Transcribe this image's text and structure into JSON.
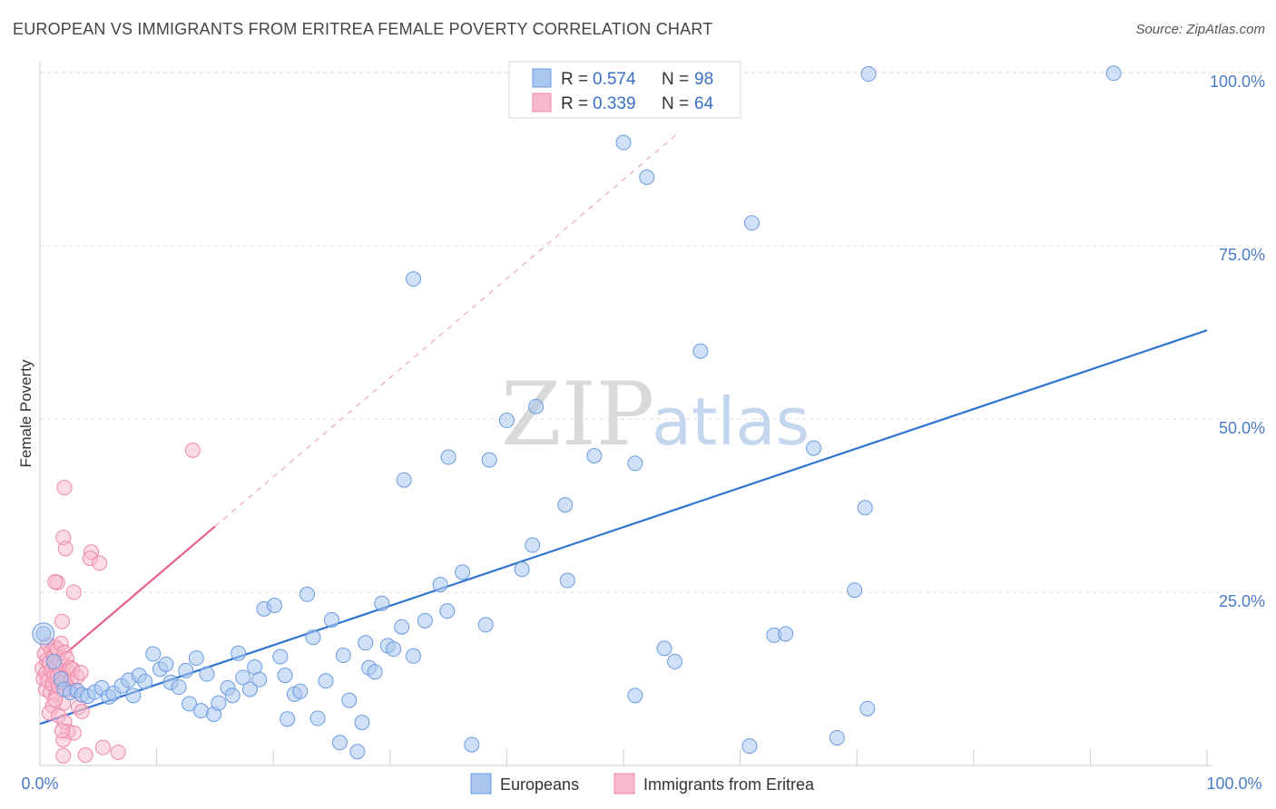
{
  "header": {
    "title": "EUROPEAN VS IMMIGRANTS FROM ERITREA FEMALE POVERTY CORRELATION CHART",
    "source": "Source: ZipAtlas.com"
  },
  "colors": {
    "blue_fill": "#a9c6ef",
    "blue_stroke": "#6b9be0",
    "blue_line": "#2f74d0",
    "pink_fill": "#f7b9cc",
    "pink_stroke": "#ee86a6",
    "pink_line": "#e8608a",
    "grid": "#dddddd",
    "axis_tick": "#4a7cc8"
  },
  "watermark": {
    "zip": "ZIP",
    "atlas": "atlas"
  },
  "legend": {
    "rows": [
      {
        "r_label": "R =",
        "r_value": "0.574",
        "n_label": "N =",
        "n_value": "98"
      },
      {
        "r_label": "R =",
        "r_value": "0.339",
        "n_label": "N =",
        "n_value": "64"
      }
    ]
  },
  "bottom_legend": {
    "europeans": "Europeans",
    "eritrea": "Immigrants from Eritrea"
  },
  "chart_data": {
    "type": "scatter",
    "title": "EUROPEAN VS IMMIGRANTS FROM ERITREA FEMALE POVERTY CORRELATION CHART",
    "xlabel": "",
    "ylabel": "Female Poverty",
    "xlim": [
      0,
      100
    ],
    "ylim": [
      0,
      105
    ],
    "x_tick_labels": {
      "left": "0.0%",
      "right": "100.0%"
    },
    "y_ticks": [
      {
        "value": 25,
        "label": "25.0%"
      },
      {
        "value": 50,
        "label": "50.0%"
      },
      {
        "value": 75,
        "label": "75.0%"
      },
      {
        "value": 100,
        "label": "100.0%"
      }
    ],
    "series": [
      {
        "name": "Europeans",
        "r": 0.574,
        "n": 98,
        "trend": {
          "x0": 0,
          "y0": 6.0,
          "x1": 100,
          "y1": 62.8,
          "dashed_extension": false
        },
        "points": [
          [
            0.3,
            19.0
          ],
          [
            1.2,
            15.0
          ],
          [
            1.8,
            12.5
          ],
          [
            2.1,
            11.0
          ],
          [
            2.6,
            10.5
          ],
          [
            3.2,
            10.8
          ],
          [
            3.6,
            10.2
          ],
          [
            4.1,
            10.0
          ],
          [
            4.7,
            10.6
          ],
          [
            5.3,
            11.2
          ],
          [
            5.9,
            9.9
          ],
          [
            6.3,
            10.4
          ],
          [
            7.0,
            11.5
          ],
          [
            7.6,
            12.3
          ],
          [
            8.0,
            10.1
          ],
          [
            8.5,
            13.0
          ],
          [
            9.0,
            12.1
          ],
          [
            9.7,
            16.1
          ],
          [
            10.3,
            13.9
          ],
          [
            10.8,
            14.6
          ],
          [
            11.2,
            12.0
          ],
          [
            11.9,
            11.3
          ],
          [
            12.5,
            13.7
          ],
          [
            12.8,
            8.9
          ],
          [
            13.4,
            15.5
          ],
          [
            13.8,
            7.9
          ],
          [
            14.3,
            13.2
          ],
          [
            14.9,
            7.4
          ],
          [
            15.3,
            9.0
          ],
          [
            16.1,
            11.2
          ],
          [
            16.5,
            10.1
          ],
          [
            17.0,
            16.2
          ],
          [
            17.4,
            12.7
          ],
          [
            18.0,
            11.0
          ],
          [
            18.4,
            14.2
          ],
          [
            18.8,
            12.4
          ],
          [
            19.2,
            22.6
          ],
          [
            20.1,
            23.1
          ],
          [
            20.6,
            15.7
          ],
          [
            21.0,
            13.0
          ],
          [
            21.2,
            6.7
          ],
          [
            21.8,
            10.3
          ],
          [
            22.3,
            10.7
          ],
          [
            22.9,
            24.7
          ],
          [
            23.4,
            18.5
          ],
          [
            23.8,
            6.8
          ],
          [
            24.5,
            12.2
          ],
          [
            25.0,
            21.0
          ],
          [
            25.7,
            3.3
          ],
          [
            26.0,
            15.9
          ],
          [
            26.5,
            9.4
          ],
          [
            27.2,
            2.0
          ],
          [
            27.6,
            6.2
          ],
          [
            27.9,
            17.7
          ],
          [
            28.2,
            14.1
          ],
          [
            28.7,
            13.5
          ],
          [
            29.3,
            23.4
          ],
          [
            29.8,
            17.3
          ],
          [
            30.3,
            16.8
          ],
          [
            31.2,
            41.2
          ],
          [
            31.0,
            20.0
          ],
          [
            32.0,
            15.8
          ],
          [
            32.0,
            70.2
          ],
          [
            33.0,
            20.9
          ],
          [
            34.3,
            26.1
          ],
          [
            34.9,
            22.3
          ],
          [
            35.0,
            44.5
          ],
          [
            36.2,
            27.9
          ],
          [
            37.0,
            3.0
          ],
          [
            38.2,
            20.3
          ],
          [
            38.5,
            44.1
          ],
          [
            40.0,
            49.8
          ],
          [
            41.3,
            28.3
          ],
          [
            42.2,
            31.8
          ],
          [
            42.5,
            51.8
          ],
          [
            45.0,
            37.6
          ],
          [
            45.2,
            26.7
          ],
          [
            47.5,
            44.7
          ],
          [
            50.0,
            89.9
          ],
          [
            51.0,
            43.6
          ],
          [
            51.0,
            10.1
          ],
          [
            52.0,
            84.9
          ],
          [
            53.5,
            16.9
          ],
          [
            54.4,
            15.0
          ],
          [
            56.6,
            59.8
          ],
          [
            60.8,
            2.8
          ],
          [
            61.0,
            78.3
          ],
          [
            62.9,
            18.8
          ],
          [
            63.9,
            19.0
          ],
          [
            66.3,
            45.8
          ],
          [
            68.3,
            4.0
          ],
          [
            69.8,
            25.3
          ],
          [
            70.7,
            37.2
          ],
          [
            70.9,
            8.2
          ],
          [
            71.0,
            99.8
          ],
          [
            92.0,
            99.9
          ]
        ]
      },
      {
        "name": "Immigrants from Eritrea",
        "r": 0.339,
        "n": 64,
        "trend": {
          "x0": 0,
          "y0": 13.0,
          "x1": 15,
          "y1": 34.5,
          "dashed_extension": true,
          "dash_to": {
            "x": 54.5,
            "y": 91.0
          }
        },
        "points": [
          [
            0.2,
            14.0
          ],
          [
            0.3,
            12.5
          ],
          [
            0.4,
            16.1
          ],
          [
            0.5,
            13.3
          ],
          [
            0.5,
            11.0
          ],
          [
            0.6,
            15.2
          ],
          [
            0.7,
            17.4
          ],
          [
            0.7,
            12.2
          ],
          [
            0.8,
            14.8
          ],
          [
            0.9,
            10.5
          ],
          [
            1.0,
            16.5
          ],
          [
            1.0,
            13.7
          ],
          [
            1.1,
            11.7
          ],
          [
            1.2,
            15.8
          ],
          [
            1.2,
            12.9
          ],
          [
            1.3,
            17.1
          ],
          [
            1.4,
            14.4
          ],
          [
            1.4,
            10.2
          ],
          [
            1.5,
            13.0
          ],
          [
            1.5,
            16.8
          ],
          [
            1.6,
            11.4
          ],
          [
            1.7,
            15.0
          ],
          [
            1.8,
            13.2
          ],
          [
            1.8,
            17.6
          ],
          [
            1.9,
            12.0
          ],
          [
            2.0,
            14.6
          ],
          [
            2.0,
            9.0
          ],
          [
            2.1,
            16.3
          ],
          [
            2.2,
            12.7
          ],
          [
            2.3,
            15.4
          ],
          [
            2.4,
            13.6
          ],
          [
            2.5,
            11.1
          ],
          [
            2.6,
            14.1
          ],
          [
            2.7,
            12.4
          ],
          [
            2.8,
            13.9
          ],
          [
            3.0,
            10.8
          ],
          [
            3.2,
            12.8
          ],
          [
            3.3,
            8.4
          ],
          [
            3.5,
            13.4
          ],
          [
            3.6,
            7.8
          ],
          [
            1.1,
            8.6
          ],
          [
            1.3,
            9.5
          ],
          [
            0.8,
            7.6
          ],
          [
            1.6,
            7.2
          ],
          [
            2.1,
            6.3
          ],
          [
            2.4,
            4.9
          ],
          [
            2.9,
            4.7
          ],
          [
            2.0,
            3.7
          ],
          [
            1.9,
            5.0
          ],
          [
            1.5,
            26.4
          ],
          [
            1.3,
            26.5
          ],
          [
            1.9,
            20.8
          ],
          [
            2.0,
            32.9
          ],
          [
            2.2,
            31.3
          ],
          [
            2.1,
            40.1
          ],
          [
            2.9,
            25.0
          ],
          [
            4.4,
            30.8
          ],
          [
            4.3,
            29.9
          ],
          [
            5.1,
            29.2
          ],
          [
            2.0,
            1.4
          ],
          [
            3.9,
            1.5
          ],
          [
            5.4,
            2.6
          ],
          [
            6.7,
            1.9
          ],
          [
            13.1,
            45.5
          ]
        ]
      }
    ]
  }
}
